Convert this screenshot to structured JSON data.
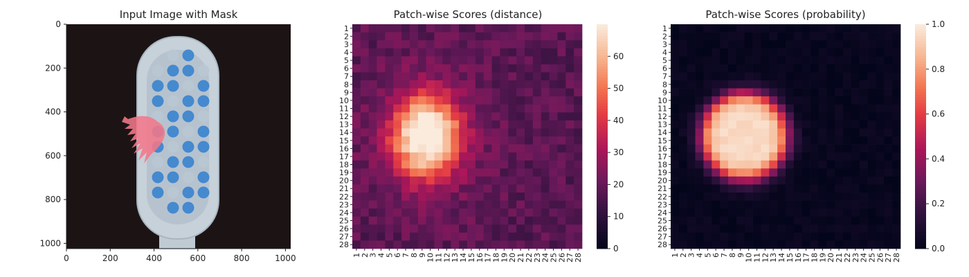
{
  "chart_data": [
    {
      "type": "image",
      "title": "Input Image with Mask",
      "xlim": [
        0,
        1024
      ],
      "ylim": [
        1024,
        0
      ],
      "xticks": [
        0,
        200,
        400,
        600,
        800,
        1000
      ],
      "yticks": [
        0,
        200,
        400,
        600,
        800,
        1000
      ],
      "colors": {
        "background": "#1c1414",
        "brush_head": "#c7d2da",
        "bristle": "#3f86cf",
        "bristle_light": "#b9c7d3",
        "mask": "#f2788a"
      }
    },
    {
      "type": "heatmap",
      "title": "Patch-wise Scores (distance)",
      "rows": 28,
      "cols": 28,
      "xticklabels": [
        "1",
        "2",
        "3",
        "4",
        "5",
        "6",
        "7",
        "8",
        "9",
        "10",
        "11",
        "12",
        "13",
        "14",
        "15",
        "16",
        "17",
        "18",
        "19",
        "20",
        "21",
        "22",
        "23",
        "24",
        "25",
        "26",
        "27",
        "28"
      ],
      "yticklabels": [
        "1",
        "2",
        "3",
        "4",
        "5",
        "6",
        "7",
        "8",
        "9",
        "10",
        "11",
        "12",
        "13",
        "14",
        "15",
        "16",
        "17",
        "18",
        "19",
        "20",
        "21",
        "22",
        "23",
        "24",
        "25",
        "26",
        "27",
        "28"
      ],
      "colorbar": {
        "min": 0,
        "max": 70,
        "ticks": [
          0,
          10,
          20,
          30,
          40,
          50,
          60
        ]
      },
      "model": {
        "background": 18,
        "peak": 68,
        "center_row": 14.5,
        "center_col": 9.5,
        "radius_rows": 5.2,
        "radius_cols": 4.2
      }
    },
    {
      "type": "heatmap",
      "title": "Patch-wise Scores (probability)",
      "rows": 28,
      "cols": 28,
      "xticklabels": [
        "1",
        "2",
        "3",
        "4",
        "5",
        "6",
        "7",
        "8",
        "9",
        "10",
        "11",
        "12",
        "13",
        "14",
        "15",
        "16",
        "17",
        "18",
        "19",
        "20",
        "21",
        "22",
        "23",
        "24",
        "25",
        "26",
        "27",
        "28"
      ],
      "yticklabels": [
        "1",
        "2",
        "3",
        "4",
        "5",
        "6",
        "7",
        "8",
        "9",
        "10",
        "11",
        "12",
        "13",
        "14",
        "15",
        "16",
        "17",
        "18",
        "19",
        "20",
        "21",
        "22",
        "23",
        "24",
        "25",
        "26",
        "27",
        "28"
      ],
      "colorbar": {
        "min": 0,
        "max": 1,
        "ticks": [
          "0.0",
          "0.2",
          "0.4",
          "0.6",
          "0.8",
          "1.0"
        ]
      },
      "model": {
        "background": 0.02,
        "peak": 0.96,
        "center_row": 14.5,
        "center_col": 9.5,
        "radius_rows": 5.4,
        "radius_cols": 5.2
      }
    }
  ]
}
